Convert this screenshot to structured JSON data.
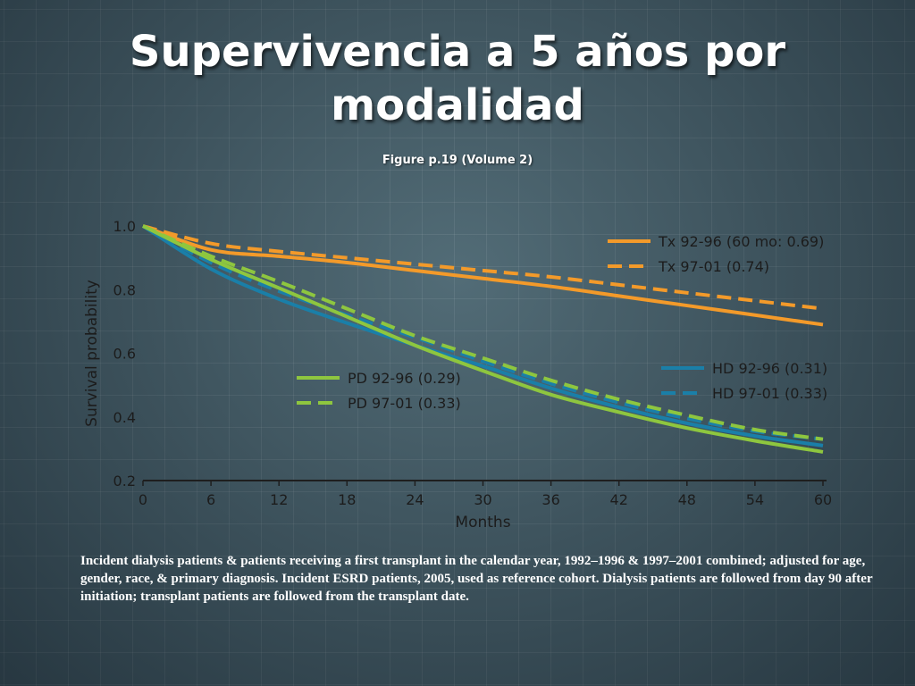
{
  "slide": {
    "title": "Supervivencia a 5 años por modalidad",
    "subtitle": "Figure p.19 (Volume 2)",
    "caption": "Incident dialysis patients & patients receiving a first transplant in the calendar year, 1992–1996 & 1997–2001 combined; adjusted for age, gender, race, & primary diagnosis. Incident ESRD patients, 2005, used as reference cohort. Dialysis patients are followed from day 90 after initiation; transplant patients are followed from the transplant date."
  },
  "chart_data": {
    "type": "line",
    "xlabel": "Months",
    "ylabel": "Survival probability",
    "xlim": [
      0,
      60
    ],
    "ylim": [
      0.2,
      1.0
    ],
    "x_ticks": [
      0,
      6,
      12,
      18,
      24,
      30,
      36,
      42,
      48,
      54,
      60
    ],
    "y_ticks": [
      1.0,
      0.8,
      0.6,
      0.4,
      0.2
    ],
    "y_tick_labels": [
      "1.0",
      "0.8",
      "0.6",
      "0.4",
      "0.2"
    ],
    "x": [
      0,
      6,
      12,
      18,
      24,
      30,
      36,
      42,
      48,
      54,
      60
    ],
    "series": [
      {
        "name": "Tx 92-96 (60 mo: 0.69)",
        "color": "#f39a2a",
        "dashed": false,
        "values": [
          1.0,
          0.925,
          0.905,
          0.885,
          0.86,
          0.835,
          0.81,
          0.78,
          0.75,
          0.72,
          0.69
        ]
      },
      {
        "name": "Tx 97-01 (0.74)",
        "color": "#f39a2a",
        "dashed": true,
        "values": [
          1.0,
          0.945,
          0.92,
          0.9,
          0.88,
          0.86,
          0.84,
          0.815,
          0.79,
          0.765,
          0.74
        ]
      },
      {
        "name": "HD 92-96 (0.31)",
        "color": "#1a7fa8",
        "dashed": false,
        "values": [
          1.0,
          0.865,
          0.77,
          0.695,
          0.625,
          0.56,
          0.49,
          0.43,
          0.38,
          0.34,
          0.31
        ]
      },
      {
        "name": "HD 97-01 (0.33)",
        "color": "#1a7fa8",
        "dashed": true,
        "values": [
          1.0,
          0.885,
          0.795,
          0.72,
          0.65,
          0.575,
          0.505,
          0.445,
          0.395,
          0.355,
          0.33
        ]
      },
      {
        "name": "PD 92-96 (0.29)",
        "color": "#8ec63f",
        "dashed": false,
        "values": [
          1.0,
          0.895,
          0.805,
          0.715,
          0.625,
          0.545,
          0.47,
          0.415,
          0.365,
          0.325,
          0.29
        ]
      },
      {
        "name": "PD 97-01 (0.33)",
        "color": "#8ec63f",
        "dashed": true,
        "values": [
          1.0,
          0.905,
          0.825,
          0.74,
          0.655,
          0.585,
          0.515,
          0.455,
          0.405,
          0.36,
          0.33
        ]
      }
    ],
    "legends": [
      {
        "position": "top-right",
        "entries": [
          0,
          1
        ]
      },
      {
        "position": "middle-right",
        "entries": [
          2,
          3
        ]
      },
      {
        "position": "middle-left",
        "entries": [
          4,
          5
        ]
      }
    ]
  }
}
